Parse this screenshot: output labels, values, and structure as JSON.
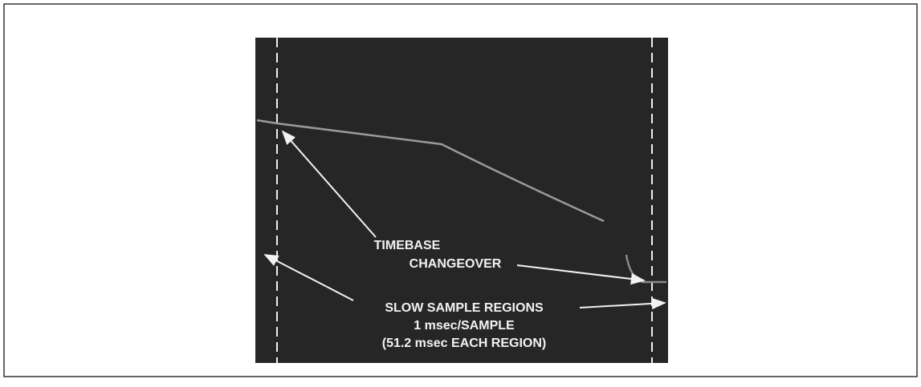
{
  "figure": {
    "annotations": [
      {
        "lines": [
          "TIMEBASE",
          "CHANGEOVER"
        ]
      },
      {
        "lines": [
          "SLOW SAMPLE REGIONS",
          "1 msec/SAMPLE",
          "(51.2 msec EACH REGION)"
        ]
      }
    ]
  }
}
